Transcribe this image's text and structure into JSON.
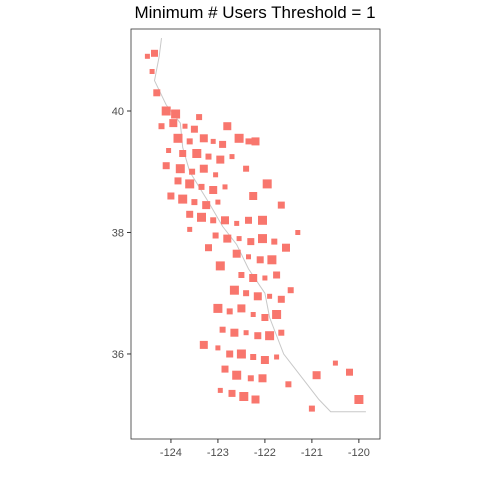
{
  "chart_data": {
    "type": "scatter",
    "title": "Minimum # Users Threshold =  1",
    "xlabel": "",
    "ylabel": "",
    "xlim": [
      -124.85,
      -119.55
    ],
    "ylim": [
      34.6,
      41.35
    ],
    "x_ticks": [
      {
        "value": -124,
        "label": "-124"
      },
      {
        "value": -123,
        "label": "-123"
      },
      {
        "value": -122,
        "label": "-122"
      },
      {
        "value": -121,
        "label": "-121"
      },
      {
        "value": -120,
        "label": "-120"
      }
    ],
    "y_ticks": [
      {
        "value": 36,
        "label": "36"
      },
      {
        "value": 38,
        "label": "38"
      },
      {
        "value": 40,
        "label": "40"
      }
    ],
    "grid": false,
    "legend": "none",
    "fill_color": "#F8766D",
    "line_color": "#c8c8c8",
    "points": [
      [
        -124.4,
        40.65
      ],
      [
        -124.3,
        40.3
      ],
      [
        -124.1,
        40.0
      ],
      [
        -124.2,
        39.75
      ],
      [
        -123.95,
        39.8
      ],
      [
        -123.7,
        39.75
      ],
      [
        -123.5,
        39.7
      ],
      [
        -123.85,
        39.55
      ],
      [
        -123.6,
        39.5
      ],
      [
        -123.3,
        39.55
      ],
      [
        -123.1,
        39.5
      ],
      [
        -122.9,
        39.45
      ],
      [
        -122.55,
        39.55
      ],
      [
        -122.35,
        39.5
      ],
      [
        -122.2,
        39.5
      ],
      [
        -124.05,
        39.35
      ],
      [
        -123.75,
        39.3
      ],
      [
        -123.45,
        39.3
      ],
      [
        -123.2,
        39.25
      ],
      [
        -122.95,
        39.2
      ],
      [
        -122.7,
        39.25
      ],
      [
        -124.1,
        39.1
      ],
      [
        -123.8,
        39.05
      ],
      [
        -123.55,
        39.0
      ],
      [
        -123.3,
        39.05
      ],
      [
        -123.05,
        38.95
      ],
      [
        -123.85,
        38.85
      ],
      [
        -123.6,
        38.8
      ],
      [
        -123.35,
        38.75
      ],
      [
        -123.1,
        38.7
      ],
      [
        -122.85,
        38.75
      ],
      [
        -124.0,
        38.6
      ],
      [
        -123.75,
        38.55
      ],
      [
        -123.5,
        38.5
      ],
      [
        -123.25,
        38.45
      ],
      [
        -123.0,
        38.5
      ],
      [
        -123.6,
        38.3
      ],
      [
        -123.35,
        38.25
      ],
      [
        -123.1,
        38.2
      ],
      [
        -122.85,
        38.2
      ],
      [
        -122.6,
        38.15
      ],
      [
        -122.35,
        38.2
      ],
      [
        -122.05,
        38.2
      ],
      [
        -123.05,
        37.95
      ],
      [
        -122.8,
        37.9
      ],
      [
        -122.55,
        37.9
      ],
      [
        -122.3,
        37.85
      ],
      [
        -122.05,
        37.9
      ],
      [
        -121.8,
        37.85
      ],
      [
        -122.6,
        37.65
      ],
      [
        -122.35,
        37.6
      ],
      [
        -122.1,
        37.55
      ],
      [
        -121.85,
        37.55
      ],
      [
        -122.5,
        37.3
      ],
      [
        -122.25,
        37.25
      ],
      [
        -122.0,
        37.25
      ],
      [
        -121.75,
        37.3
      ],
      [
        -122.65,
        37.05
      ],
      [
        -122.4,
        37.0
      ],
      [
        -122.15,
        36.95
      ],
      [
        -121.9,
        36.95
      ],
      [
        -121.65,
        36.9
      ],
      [
        -123.0,
        36.75
      ],
      [
        -122.75,
        36.7
      ],
      [
        -122.5,
        36.75
      ],
      [
        -122.25,
        36.65
      ],
      [
        -122.0,
        36.6
      ],
      [
        -121.75,
        36.65
      ],
      [
        -122.9,
        36.4
      ],
      [
        -122.65,
        36.35
      ],
      [
        -122.4,
        36.35
      ],
      [
        -122.15,
        36.3
      ],
      [
        -121.9,
        36.3
      ],
      [
        -121.65,
        36.35
      ],
      [
        -123.3,
        36.15
      ],
      [
        -123.0,
        36.1
      ],
      [
        -122.75,
        36.0
      ],
      [
        -122.5,
        36.0
      ],
      [
        -122.25,
        35.95
      ],
      [
        -122.0,
        35.9
      ],
      [
        -121.75,
        35.95
      ],
      [
        -122.85,
        35.75
      ],
      [
        -122.6,
        35.65
      ],
      [
        -122.3,
        35.6
      ],
      [
        -122.05,
        35.6
      ],
      [
        -122.95,
        35.4
      ],
      [
        -122.7,
        35.35
      ],
      [
        -122.45,
        35.3
      ],
      [
        -121.5,
        35.5
      ],
      [
        -120.9,
        35.65
      ],
      [
        -120.5,
        35.85
      ],
      [
        -120.2,
        35.7
      ],
      [
        -120.0,
        35.25
      ],
      [
        -121.0,
        35.1
      ],
      [
        -122.2,
        35.25
      ],
      [
        -123.6,
        38.05
      ],
      [
        -123.2,
        37.75
      ],
      [
        -122.95,
        37.45
      ],
      [
        -121.45,
        37.05
      ],
      [
        -121.55,
        37.75
      ],
      [
        -121.3,
        38.0
      ],
      [
        -121.65,
        38.45
      ],
      [
        -121.95,
        38.8
      ],
      [
        -122.4,
        39.05
      ],
      [
        -122.25,
        38.6
      ],
      [
        -124.5,
        40.9
      ],
      [
        -124.35,
        40.95
      ],
      [
        -123.9,
        39.95
      ],
      [
        -123.4,
        39.9
      ],
      [
        -122.8,
        39.75
      ]
    ],
    "coast_line": [
      [
        -124.2,
        41.2
      ],
      [
        -124.25,
        40.9
      ],
      [
        -124.35,
        40.5
      ],
      [
        -124.1,
        40.1
      ],
      [
        -123.8,
        39.8
      ],
      [
        -123.75,
        39.4
      ],
      [
        -123.6,
        39.0
      ],
      [
        -123.2,
        38.5
      ],
      [
        -122.9,
        38.1
      ],
      [
        -122.6,
        37.8
      ],
      [
        -122.35,
        37.4
      ],
      [
        -122.0,
        37.0
      ],
      [
        -121.9,
        36.6
      ],
      [
        -121.6,
        36.0
      ],
      [
        -121.2,
        35.6
      ],
      [
        -120.85,
        35.25
      ],
      [
        -120.6,
        35.05
      ],
      [
        -119.85,
        35.05
      ]
    ]
  }
}
